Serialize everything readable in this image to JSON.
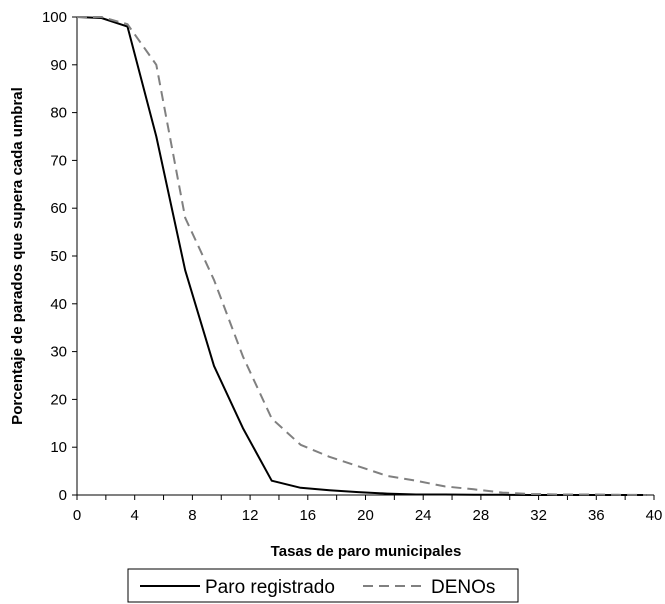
{
  "chart_data": {
    "type": "line",
    "title": "",
    "xlabel": "Tasas de paro municipales",
    "ylabel": "Porcentaje de parados que supera cada umbral",
    "xlim": [
      0,
      40
    ],
    "ylim": [
      0,
      100
    ],
    "x_ticks": [
      0,
      4,
      8,
      12,
      16,
      20,
      24,
      28,
      32,
      36,
      40
    ],
    "x_tick_labels": [
      "0",
      "4",
      "8",
      "12",
      "16",
      "20",
      "24",
      "28",
      "32",
      "36",
      "40"
    ],
    "y_ticks": [
      0,
      10,
      20,
      30,
      40,
      50,
      60,
      70,
      80,
      90,
      100
    ],
    "y_tick_labels": [
      "0",
      "10",
      "20",
      "30",
      "40",
      "50",
      "60",
      "70",
      "80",
      "90",
      "100"
    ],
    "grid": false,
    "legend_position": "bottom",
    "series": [
      {
        "name": "Paro registrado",
        "color": "#000000",
        "style": "solid",
        "x": [
          0,
          1.7,
          3.5,
          5.5,
          7.5,
          9.5,
          11.5,
          13.5,
          15.5,
          17.5,
          19.5,
          21.5,
          23.5,
          25.5,
          27.5,
          29.5,
          31.5,
          33.5,
          35.5,
          37.5,
          39.5
        ],
        "y": [
          100,
          99.8,
          98,
          75,
          47,
          27,
          14,
          3,
          1.5,
          1,
          0.6,
          0.3,
          0.1,
          0.1,
          0.05,
          0.05,
          0,
          0,
          0,
          0,
          0
        ]
      },
      {
        "name": "DENOs",
        "color": "#808080",
        "style": "dashed",
        "x": [
          0,
          1.7,
          3.5,
          5.5,
          7.5,
          9.5,
          11.5,
          13.5,
          15.5,
          17.5,
          19.5,
          21.5,
          23.5,
          25.5,
          27.5,
          29.5,
          31.5,
          33.5,
          35.5,
          37.5,
          39.5
        ],
        "y": [
          100,
          100,
          98.5,
          90,
          58,
          45,
          29,
          16,
          10.5,
          8,
          6,
          4,
          3,
          1.8,
          1.2,
          0.5,
          0.2,
          0.1,
          0.1,
          0.05,
          0
        ]
      }
    ]
  }
}
